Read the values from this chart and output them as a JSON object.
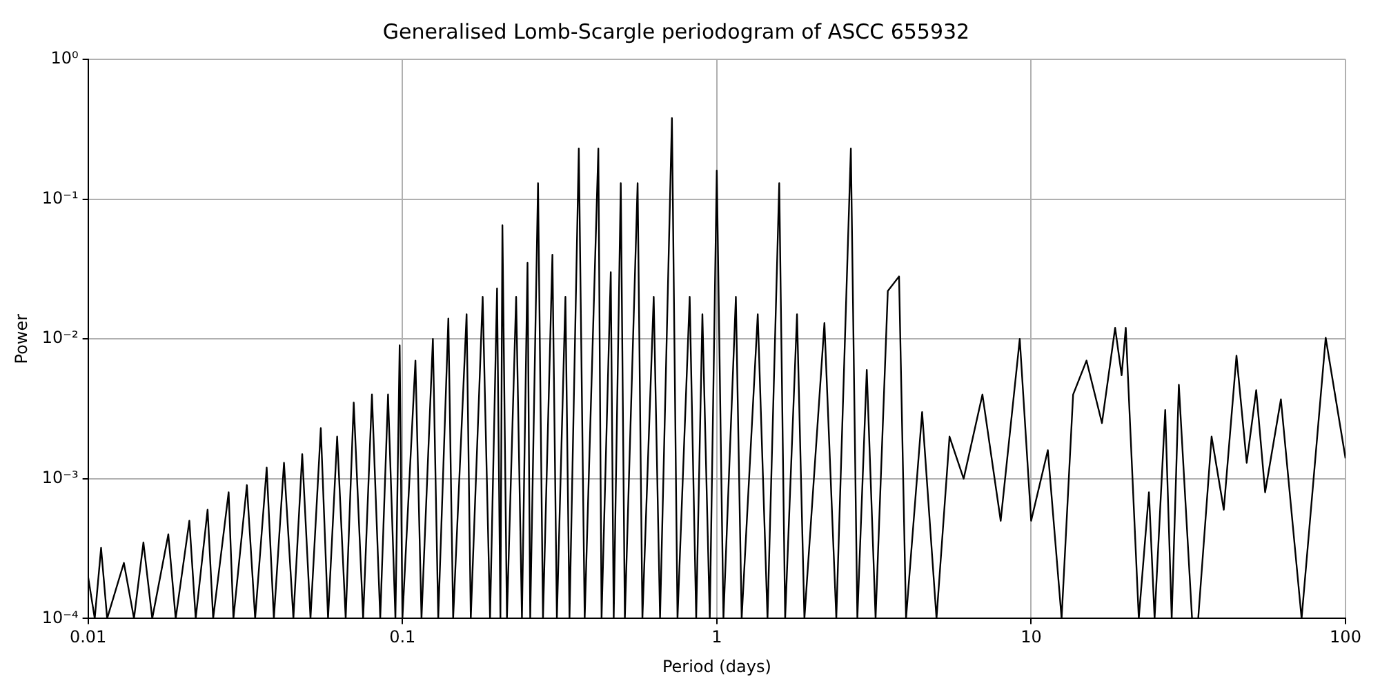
{
  "chart_data": {
    "type": "line",
    "title": "Generalised Lomb-Scargle periodogram of ASCC 655932",
    "xlabel": "Period (days)",
    "ylabel": "Power",
    "log": "xy",
    "grid": true,
    "legend": false,
    "marker": "none",
    "line_style": "solid",
    "xlim": [
      0.01,
      100
    ],
    "ylim": [
      0.0001,
      1
    ],
    "xticks": [
      0.01,
      0.1,
      1,
      10,
      100
    ],
    "yticks": [
      {
        "value": 0.0001,
        "label": "10⁻⁴"
      },
      {
        "value": 0.001,
        "label": "10⁻³"
      },
      {
        "value": 0.01,
        "label": "10⁻²"
      },
      {
        "value": 0.1,
        "label": "10⁻¹"
      },
      {
        "value": 1,
        "label": "10⁰"
      }
    ],
    "series": [
      {
        "color": "#000000",
        "x": [
          0.01,
          0.0105,
          0.011,
          0.0115,
          0.013,
          0.014,
          0.015,
          0.016,
          0.018,
          0.019,
          0.021,
          0.022,
          0.024,
          0.025,
          0.028,
          0.029,
          0.032,
          0.034,
          0.037,
          0.039,
          0.042,
          0.045,
          0.048,
          0.051,
          0.055,
          0.058,
          0.062,
          0.066,
          0.07,
          0.075,
          0.08,
          0.085,
          0.09,
          0.095,
          0.098,
          0.1,
          0.11,
          0.115,
          0.125,
          0.13,
          0.14,
          0.145,
          0.16,
          0.165,
          0.18,
          0.19,
          0.2,
          0.205,
          0.208,
          0.215,
          0.23,
          0.24,
          0.25,
          0.255,
          0.27,
          0.28,
          0.3,
          0.31,
          0.33,
          0.34,
          0.364,
          0.38,
          0.42,
          0.43,
          0.46,
          0.47,
          0.495,
          0.51,
          0.56,
          0.58,
          0.63,
          0.66,
          0.72,
          0.75,
          0.82,
          0.86,
          0.9,
          0.95,
          1.0,
          1.05,
          1.15,
          1.2,
          1.35,
          1.45,
          1.58,
          1.65,
          1.8,
          1.9,
          2.2,
          2.4,
          2.67,
          2.8,
          3.0,
          3.2,
          3.5,
          3.8,
          4.0,
          4.5,
          5,
          5.5,
          6.1,
          7,
          8,
          9.2,
          10,
          11.3,
          12.5,
          13.6,
          15,
          16.8,
          18.5,
          19.4,
          20,
          22,
          23.7,
          24.7,
          26.7,
          28,
          29.5,
          32.5,
          34,
          37.5,
          41,
          45,
          48.5,
          52,
          55.5,
          62.3,
          72.5,
          86.5,
          100
        ],
        "values": [
          0.0002,
          0.0001,
          0.00032,
          0.0001,
          0.00025,
          0.0001,
          0.00035,
          0.0001,
          0.0004,
          0.0001,
          0.0005,
          0.0001,
          0.0006,
          0.0001,
          0.0008,
          0.0001,
          0.0009,
          0.0001,
          0.0012,
          0.0001,
          0.0013,
          0.0001,
          0.0015,
          0.0001,
          0.0023,
          0.0001,
          0.002,
          0.0001,
          0.0035,
          0.0001,
          0.004,
          0.0001,
          0.004,
          0.0001,
          0.009,
          0.0001,
          0.007,
          0.0001,
          0.01,
          0.0001,
          0.014,
          0.0001,
          0.015,
          0.0001,
          0.02,
          0.0001,
          0.023,
          0.0001,
          0.065,
          0.0001,
          0.02,
          0.0001,
          0.035,
          0.0001,
          0.13,
          0.0001,
          0.04,
          0.0001,
          0.02,
          0.0001,
          0.23,
          0.0001,
          0.23,
          0.0001,
          0.03,
          0.0001,
          0.13,
          0.0001,
          0.13,
          0.0001,
          0.02,
          0.0001,
          0.38,
          0.0001,
          0.02,
          0.0001,
          0.015,
          0.0001,
          0.16,
          0.0001,
          0.02,
          0.0001,
          0.015,
          0.0001,
          0.13,
          0.0001,
          0.015,
          0.0001,
          0.013,
          0.0001,
          0.23,
          0.0001,
          0.006,
          0.0001,
          0.022,
          0.028,
          0.0001,
          0.003,
          0.0001,
          0.002,
          0.001,
          0.004,
          0.0005,
          0.01,
          0.0005,
          0.0016,
          0.0001,
          0.004,
          0.007,
          0.0025,
          0.012,
          0.0055,
          0.012,
          0.0001,
          0.0008,
          0.0001,
          0.0031,
          0.0001,
          0.0047,
          0.0001,
          0.0001,
          0.002,
          0.0006,
          0.0076,
          0.0013,
          0.0043,
          0.0008,
          0.0037,
          0.0001,
          0.0102,
          0.0014
        ]
      }
    ]
  }
}
